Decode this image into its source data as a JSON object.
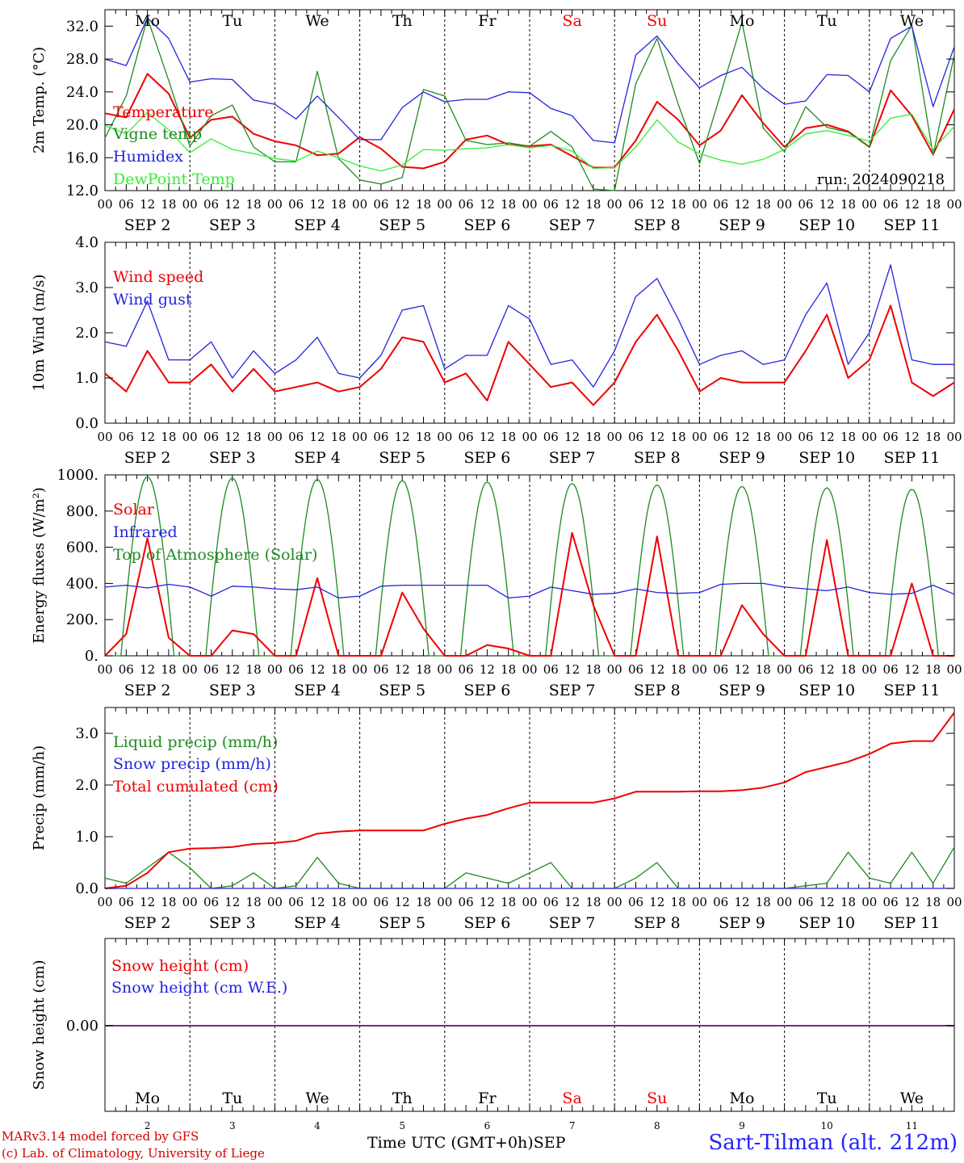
{
  "colors": {
    "red": "#ee0000",
    "green": "#1f8a1f",
    "blue": "#2323dd",
    "lightgreen": "#33ee33",
    "purple": "#7a2a8a",
    "weekend": "#ee0000",
    "axis": "#000000"
  },
  "chart_data": [
    {
      "type": "line",
      "ylabel": "2m Temp. (°C)",
      "ylim": [
        12,
        34
      ],
      "yticks": [
        12,
        16,
        20,
        24,
        28,
        32
      ],
      "ytick_labels": [
        "12.0",
        "16.0",
        "20.0",
        "24.0",
        "28.0",
        "32.0"
      ],
      "day_names": [
        "Mo",
        "Tu",
        "We",
        "Th",
        "Fr",
        "Sa",
        "Su",
        "Mo",
        "Tu",
        "We"
      ],
      "weekend_days": [
        "Sa",
        "Su"
      ],
      "hour_ticks": [
        "00",
        "06",
        "12",
        "18"
      ],
      "date_labels": [
        "SEP  2",
        "SEP  3",
        "SEP  4",
        "SEP  5",
        "SEP  6",
        "SEP  7",
        "SEP  8",
        "SEP  9",
        "SEP 10",
        "SEP 11"
      ],
      "annotation": "run: 2024090218",
      "x_hours": [
        0,
        6,
        12,
        18,
        24,
        30,
        36,
        42,
        48,
        54,
        60,
        66,
        72,
        78,
        84,
        90,
        96,
        102,
        108,
        114,
        120,
        126,
        132,
        138,
        144,
        150,
        156,
        162,
        168,
        174,
        180,
        186,
        192,
        198,
        204,
        210,
        216,
        222,
        228,
        234,
        240
      ],
      "series": [
        {
          "name": "Temperature",
          "color": "red",
          "values": [
            21.4,
            20.9,
            26.2,
            23.8,
            18.4,
            20.6,
            21.0,
            18.9,
            18.0,
            17.5,
            16.3,
            16.5,
            18.5,
            17.1,
            14.9,
            14.7,
            15.5,
            18.2,
            18.7,
            17.6,
            17.4,
            17.6,
            16.2,
            14.8,
            14.8,
            18.1,
            22.8,
            20.6,
            17.5,
            19.3,
            23.6,
            20.2,
            17.3,
            19.6,
            20.0,
            19.2,
            17.3,
            24.2,
            21.1,
            16.4,
            21.9
          ]
        },
        {
          "name": "Vigne temp",
          "color": "green",
          "values": [
            18.4,
            23.5,
            33.0,
            25.4,
            17.4,
            21.1,
            22.4,
            17.3,
            15.5,
            15.5,
            26.5,
            15.9,
            13.3,
            12.8,
            13.6,
            24.3,
            23.5,
            18.1,
            17.6,
            17.8,
            17.4,
            19.2,
            17.3,
            12.2,
            12.0,
            25.0,
            30.5,
            22.5,
            15.3,
            23.8,
            32.5,
            19.6,
            16.7,
            22.2,
            19.7,
            19.1,
            17.3,
            27.8,
            32.1,
            16.3,
            28.5
          ]
        },
        {
          "name": "Humidex",
          "color": "blue",
          "values": [
            28.0,
            27.2,
            33.0,
            30.5,
            25.2,
            25.6,
            25.5,
            23.0,
            22.5,
            20.7,
            23.5,
            20.9,
            18.2,
            18.2,
            22.1,
            24.0,
            22.8,
            23.1,
            23.1,
            24.0,
            23.9,
            22.0,
            21.1,
            18.1,
            17.8,
            28.5,
            30.8,
            27.4,
            24.5,
            26.0,
            27.0,
            24.4,
            22.5,
            22.9,
            26.1,
            26.0,
            24.0,
            30.5,
            32.0,
            22.2,
            29.5
          ]
        },
        {
          "name": "DewPoint Temp",
          "color": "lightgreen",
          "values": [
            19.9,
            18.9,
            21.5,
            19.4,
            16.6,
            18.3,
            17.0,
            16.5,
            15.9,
            15.6,
            16.8,
            16.0,
            15.0,
            14.4,
            15.1,
            17.0,
            16.9,
            17.1,
            17.2,
            17.6,
            17.2,
            17.5,
            16.8,
            14.7,
            14.8,
            17.3,
            20.6,
            17.9,
            16.5,
            15.7,
            15.2,
            15.8,
            17.0,
            18.9,
            19.3,
            18.7,
            18.0,
            20.8,
            21.3,
            17.0,
            19.8
          ]
        }
      ]
    },
    {
      "type": "line",
      "ylabel": "10m Wind (m/s)",
      "ylim": [
        0,
        4
      ],
      "yticks": [
        0,
        1,
        2,
        3,
        4
      ],
      "ytick_labels": [
        "0.0",
        "1.0",
        "2.0",
        "3.0",
        "4.0"
      ],
      "hour_ticks": [
        "00",
        "06",
        "12",
        "18"
      ],
      "date_labels": [
        "SEP  2",
        "SEP  3",
        "SEP  4",
        "SEP  5",
        "SEP  6",
        "SEP  7",
        "SEP  8",
        "SEP  9",
        "SEP 10",
        "SEP 11"
      ],
      "x_hours": [
        0,
        6,
        12,
        18,
        24,
        30,
        36,
        42,
        48,
        54,
        60,
        66,
        72,
        78,
        84,
        90,
        96,
        102,
        108,
        114,
        120,
        126,
        132,
        138,
        144,
        150,
        156,
        162,
        168,
        174,
        180,
        186,
        192,
        198,
        204,
        210,
        216,
        222,
        228,
        234,
        240
      ],
      "series": [
        {
          "name": "Wind speed",
          "color": "red",
          "values": [
            1.1,
            0.7,
            1.6,
            0.9,
            0.9,
            1.3,
            0.7,
            1.2,
            0.7,
            0.8,
            0.9,
            0.7,
            0.8,
            1.2,
            1.9,
            1.8,
            0.9,
            1.1,
            0.5,
            1.8,
            1.3,
            0.8,
            0.9,
            0.4,
            0.9,
            1.8,
            2.4,
            1.6,
            0.7,
            1.0,
            0.9,
            0.9,
            0.9,
            1.6,
            2.4,
            1.0,
            1.4,
            2.6,
            0.9,
            0.6,
            0.9
          ]
        },
        {
          "name": "Wind gust",
          "color": "blue",
          "values": [
            1.8,
            1.7,
            2.7,
            1.4,
            1.4,
            1.8,
            1.0,
            1.6,
            1.1,
            1.4,
            1.9,
            1.1,
            1.0,
            1.5,
            2.5,
            2.6,
            1.2,
            1.5,
            1.5,
            2.6,
            2.3,
            1.3,
            1.4,
            0.8,
            1.6,
            2.8,
            3.2,
            2.3,
            1.3,
            1.5,
            1.6,
            1.3,
            1.4,
            2.4,
            3.1,
            1.3,
            2.0,
            3.5,
            1.4,
            1.3,
            1.3
          ]
        }
      ]
    },
    {
      "type": "line",
      "ylabel": "Energy fluxes (W/m²)",
      "ylim": [
        0,
        1000
      ],
      "yticks": [
        0,
        200,
        400,
        600,
        800,
        1000
      ],
      "ytick_labels": [
        "0.",
        "200.",
        "400.",
        "600.",
        "800.",
        "1000."
      ],
      "hour_ticks": [
        "00",
        "06",
        "12",
        "18"
      ],
      "date_labels": [
        "SEP  2",
        "SEP  3",
        "SEP  4",
        "SEP  5",
        "SEP  6",
        "SEP  7",
        "SEP  8",
        "SEP  9",
        "SEP 10",
        "SEP 11"
      ],
      "x_hours": [
        0,
        6,
        12,
        18,
        24,
        30,
        36,
        42,
        48,
        54,
        60,
        66,
        72,
        78,
        84,
        90,
        96,
        102,
        108,
        114,
        120,
        126,
        132,
        138,
        144,
        150,
        156,
        162,
        168,
        174,
        180,
        186,
        192,
        198,
        204,
        210,
        216,
        222,
        228,
        234,
        240
      ],
      "series": [
        {
          "name": "Solar",
          "color": "red",
          "values": [
            0,
            120,
            650,
            100,
            0,
            0,
            140,
            120,
            0,
            0,
            430,
            0,
            0,
            0,
            350,
            150,
            0,
            0,
            60,
            40,
            0,
            0,
            680,
            280,
            0,
            0,
            660,
            0,
            0,
            0,
            280,
            120,
            0,
            0,
            640,
            0,
            0,
            0,
            400,
            0,
            0
          ]
        },
        {
          "name": "Infrared",
          "color": "blue",
          "values": [
            380,
            390,
            375,
            395,
            380,
            330,
            385,
            380,
            370,
            365,
            380,
            320,
            330,
            385,
            390,
            390,
            390,
            390,
            390,
            320,
            330,
            380,
            360,
            340,
            345,
            370,
            350,
            345,
            350,
            395,
            400,
            400,
            380,
            370,
            360,
            380,
            350,
            340,
            345,
            390,
            340
          ]
        },
        {
          "name": "Top of Atmosphere (Solar)",
          "color": "green",
          "peaks": [
            990,
            982,
            975,
            968,
            960,
            952,
            944,
            936,
            928,
            920
          ]
        }
      ]
    },
    {
      "type": "line",
      "ylabel": "Precip (mm/h)",
      "ylim": [
        0,
        3.5
      ],
      "yticks": [
        0,
        1,
        2,
        3
      ],
      "ytick_labels": [
        "0.0",
        "1.0",
        "2.0",
        "3.0"
      ],
      "hour_ticks": [
        "00",
        "06",
        "12",
        "18"
      ],
      "date_labels": [
        "SEP  2",
        "SEP  3",
        "SEP  4",
        "SEP  5",
        "SEP  6",
        "SEP  7",
        "SEP  8",
        "SEP  9",
        "SEP 10",
        "SEP 11"
      ],
      "x_hours": [
        0,
        6,
        12,
        18,
        24,
        30,
        36,
        42,
        48,
        54,
        60,
        66,
        72,
        78,
        84,
        90,
        96,
        102,
        108,
        114,
        120,
        126,
        132,
        138,
        144,
        150,
        156,
        162,
        168,
        174,
        180,
        186,
        192,
        198,
        204,
        210,
        216,
        222,
        228,
        234,
        240
      ],
      "series": [
        {
          "name": "Liquid precip (mm/h)",
          "color": "green",
          "values": [
            0.2,
            0.1,
            0.4,
            0.7,
            0.4,
            0.0,
            0.05,
            0.3,
            0.0,
            0.05,
            0.6,
            0.1,
            0.0,
            0.0,
            0.0,
            0.0,
            0.0,
            0.3,
            0.2,
            0.1,
            0.3,
            0.5,
            0.0,
            0.0,
            0.0,
            0.2,
            0.5,
            0.0,
            0.0,
            0.0,
            0.0,
            0.0,
            0.0,
            0.05,
            0.1,
            0.7,
            0.2,
            0.1,
            0.7,
            0.1,
            0.8
          ]
        },
        {
          "name": "Snow precip (mm/h)",
          "color": "blue",
          "values": [
            0,
            0,
            0,
            0,
            0,
            0,
            0,
            0,
            0,
            0,
            0,
            0,
            0,
            0,
            0,
            0,
            0,
            0,
            0,
            0,
            0,
            0,
            0,
            0,
            0,
            0,
            0,
            0,
            0,
            0,
            0,
            0,
            0,
            0,
            0,
            0,
            0,
            0,
            0,
            0,
            0
          ]
        },
        {
          "name": "Total cumulated (cm)",
          "color": "red",
          "values": [
            0.0,
            0.05,
            0.3,
            0.7,
            0.77,
            0.78,
            0.8,
            0.86,
            0.88,
            0.92,
            1.06,
            1.1,
            1.12,
            1.12,
            1.12,
            1.12,
            1.25,
            1.35,
            1.42,
            1.55,
            1.66,
            1.66,
            1.66,
            1.66,
            1.74,
            1.87,
            1.87,
            1.87,
            1.88,
            1.88,
            1.9,
            1.95,
            2.05,
            2.25,
            2.35,
            2.45,
            2.6,
            2.8,
            2.85,
            2.85,
            3.4
          ]
        }
      ]
    },
    {
      "type": "line",
      "ylabel": "Snow height (cm)",
      "yticks": [
        0
      ],
      "ytick_labels": [
        "0.00"
      ],
      "day_names": [
        "Mo",
        "Tu",
        "We",
        "Th",
        "Fr",
        "Sa",
        "Su",
        "Mo",
        "Tu",
        "We"
      ],
      "day_numbers": [
        "2",
        "3",
        "4",
        "5",
        "6",
        "7",
        "8",
        "9",
        "10",
        "11"
      ],
      "xlabel": "Time UTC (GMT+0h)",
      "month_label": "SEP",
      "series": [
        {
          "name": "Snow height (cm)",
          "color": "red",
          "value": 0.0
        },
        {
          "name": "Snow height (cm W.E.)",
          "color": "blue",
          "value": 0.0
        }
      ]
    }
  ],
  "footer": {
    "model_note": "MARv3.14 model forced by GFS",
    "copyright": "(c) Lab. of Climatology, University of Liege",
    "station": "Sart-Tilman (alt. 212m)"
  }
}
